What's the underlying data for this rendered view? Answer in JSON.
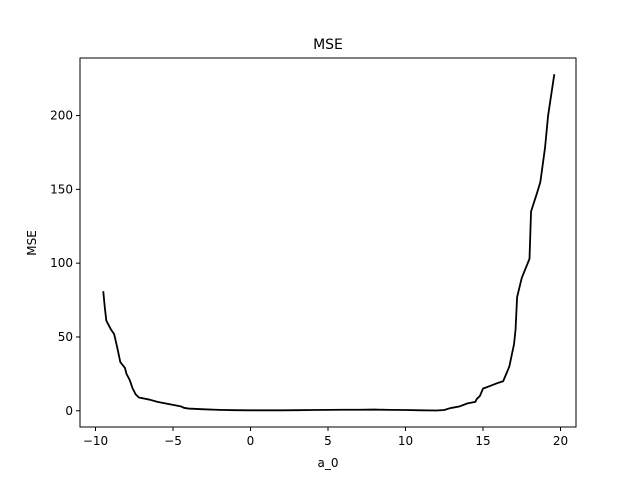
{
  "chart_data": {
    "type": "line",
    "title": "MSE",
    "xlabel": "a_0",
    "ylabel": "MSE",
    "xlim": [
      -11,
      21
    ],
    "ylim": [
      -11,
      239
    ],
    "xticks": [
      -10,
      -5,
      0,
      5,
      10,
      15,
      20
    ],
    "xtick_labels": [
      "−10",
      "−5",
      "0",
      "5",
      "10",
      "15",
      "20"
    ],
    "yticks": [
      0,
      50,
      100,
      150,
      200
    ],
    "ytick_labels": [
      "0",
      "50",
      "100",
      "150",
      "200"
    ],
    "grid": false,
    "legend": "none",
    "line_color": "#000000",
    "series": [
      {
        "x": [
          -9.5,
          -9.4,
          -9.3,
          -9.0,
          -8.8,
          -8.6,
          -8.4,
          -8.1,
          -8.0,
          -7.8,
          -7.6,
          -7.4,
          -7.2,
          -6.5,
          -6.0,
          -5.5,
          -5.0,
          -4.5,
          -4.3,
          -4.0,
          -3.0,
          -2.0,
          -1.0,
          0.0,
          1.0,
          2.0,
          3.0,
          4.0,
          5.0,
          6.0,
          7.0,
          8.0,
          9.0,
          10.0,
          11.0,
          12.0,
          12.5,
          12.8,
          13.0,
          13.5,
          14.0,
          14.5,
          14.6,
          14.8,
          15.0,
          15.5,
          16.0,
          16.3,
          16.5,
          16.7,
          16.8,
          17.0,
          17.1,
          17.2,
          17.5,
          18.0,
          18.1,
          18.5,
          18.7,
          19.0,
          19.2,
          19.6
        ],
        "y": [
          81,
          70,
          61,
          55,
          52,
          43,
          33,
          29,
          25,
          21,
          15,
          11,
          9,
          7.5,
          6,
          5,
          4,
          3,
          2,
          1.5,
          1,
          0.6,
          0.4,
          0.3,
          0.3,
          0.3,
          0.4,
          0.5,
          0.6,
          0.7,
          0.7,
          0.8,
          0.6,
          0.5,
          0.3,
          0.2,
          0.5,
          1.5,
          2,
          3,
          5,
          6,
          8,
          10,
          15,
          17,
          19,
          20,
          25,
          30,
          35,
          45,
          55,
          77,
          90,
          103,
          135,
          148,
          155,
          178,
          200,
          228
        ]
      }
    ]
  }
}
